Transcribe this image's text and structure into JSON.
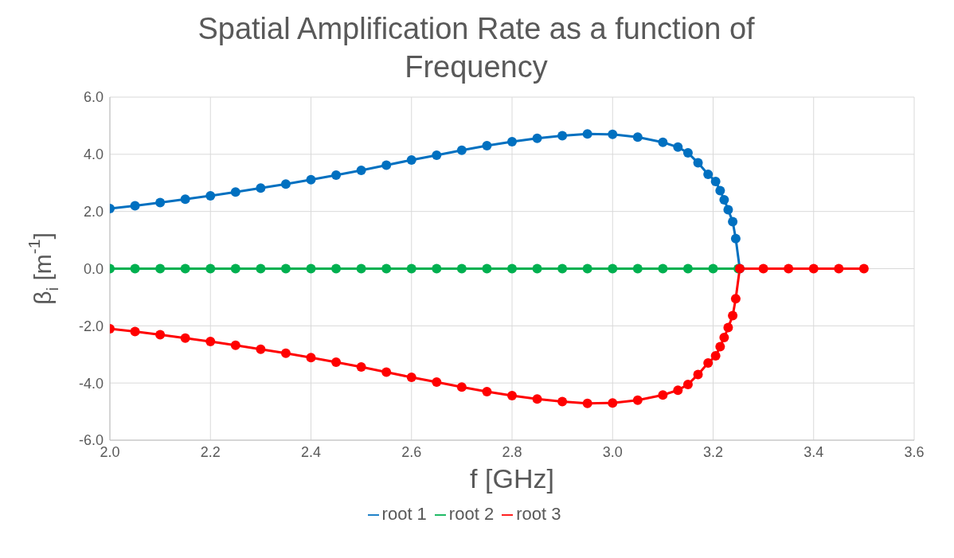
{
  "chart_data": {
    "type": "line",
    "title": "Spatial Amplification Rate as a function of Frequency",
    "xlabel": "f [GHz]",
    "ylabel": "β$_{i}$  [m$^{-1}$]",
    "xlim": [
      2.0,
      3.6
    ],
    "xticks": [
      {
        "value": 2.0,
        "label": "2.0"
      },
      {
        "value": 2.2,
        "label": "2.2"
      },
      {
        "value": 2.4,
        "label": "2.4"
      },
      {
        "value": 2.6,
        "label": "2.6"
      },
      {
        "value": 2.8,
        "label": "2.8"
      },
      {
        "value": 3.0,
        "label": "3.0"
      },
      {
        "value": 3.2,
        "label": "3.2"
      },
      {
        "value": 3.4,
        "label": "3.4"
      },
      {
        "value": 3.6,
        "label": "3.6"
      }
    ],
    "ylim": [
      -6,
      6
    ],
    "yticks": [
      {
        "value": -6,
        "label": "-6.0"
      },
      {
        "value": -4,
        "label": "-4.0"
      },
      {
        "value": -2,
        "label": "-2.0"
      },
      {
        "value": 0,
        "label": "0.0"
      },
      {
        "value": 2,
        "label": "2.0"
      },
      {
        "value": 4,
        "label": "4.0"
      },
      {
        "value": 6,
        "label": "6.0"
      }
    ],
    "grid": true,
    "legend": "bottom",
    "marker": "circle",
    "line_style": "solid",
    "series": [
      {
        "name": "root 1",
        "color": "#0070c0",
        "x": [
          2.0,
          2.05,
          2.1,
          2.15,
          2.2,
          2.25,
          2.3,
          2.35,
          2.4,
          2.45,
          2.5,
          2.55,
          2.6,
          2.65,
          2.7,
          2.75,
          2.8,
          2.85,
          2.9,
          2.95,
          3.0,
          3.05,
          3.1,
          3.13,
          3.15,
          3.17,
          3.19,
          3.205,
          3.214,
          3.222,
          3.23,
          3.239,
          3.245,
          3.253
        ],
        "values": [
          2.1,
          2.2,
          2.31,
          2.43,
          2.55,
          2.68,
          2.82,
          2.96,
          3.11,
          3.27,
          3.44,
          3.62,
          3.8,
          3.97,
          4.14,
          4.3,
          4.44,
          4.56,
          4.65,
          4.71,
          4.7,
          4.6,
          4.42,
          4.25,
          4.05,
          3.7,
          3.3,
          3.05,
          2.73,
          2.41,
          2.06,
          1.64,
          1.05,
          0
        ]
      },
      {
        "name": "root 2",
        "color": "#00b050",
        "x": [
          2.0,
          2.05,
          2.1,
          2.15,
          2.2,
          2.25,
          2.3,
          2.35,
          2.4,
          2.45,
          2.5,
          2.55,
          2.6,
          2.65,
          2.7,
          2.75,
          2.8,
          2.85,
          2.9,
          2.95,
          3.0,
          3.05,
          3.1,
          3.15,
          3.2,
          3.25
        ],
        "values": [
          0,
          0,
          0,
          0,
          0,
          0,
          0,
          0,
          0,
          0,
          0,
          0,
          0,
          0,
          0,
          0,
          0,
          0,
          0,
          0,
          0,
          0,
          0,
          0,
          0,
          0
        ]
      },
      {
        "name": "root 3",
        "color": "#ff0000",
        "x": [
          2.0,
          2.05,
          2.1,
          2.15,
          2.2,
          2.25,
          2.3,
          2.35,
          2.4,
          2.45,
          2.5,
          2.55,
          2.6,
          2.65,
          2.7,
          2.75,
          2.8,
          2.85,
          2.9,
          2.95,
          3.0,
          3.05,
          3.1,
          3.13,
          3.15,
          3.17,
          3.19,
          3.205,
          3.214,
          3.222,
          3.23,
          3.239,
          3.245,
          3.253,
          3.3,
          3.35,
          3.4,
          3.45,
          3.5
        ],
        "values": [
          -2.1,
          -2.2,
          -2.31,
          -2.43,
          -2.55,
          -2.68,
          -2.82,
          -2.96,
          -3.11,
          -3.27,
          -3.44,
          -3.62,
          -3.8,
          -3.97,
          -4.14,
          -4.3,
          -4.44,
          -4.56,
          -4.65,
          -4.71,
          -4.7,
          -4.6,
          -4.42,
          -4.25,
          -4.05,
          -3.7,
          -3.3,
          -3.05,
          -2.73,
          -2.41,
          -2.06,
          -1.64,
          -1.05,
          0,
          0,
          0,
          0,
          0,
          0
        ]
      }
    ]
  }
}
